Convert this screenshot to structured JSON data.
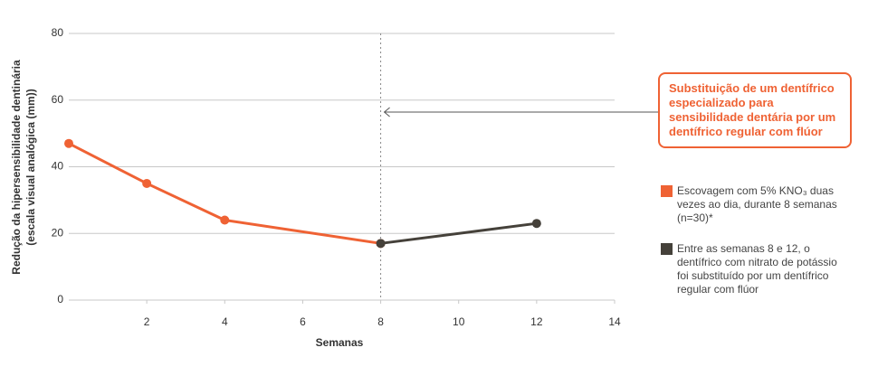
{
  "chart_data": {
    "type": "line",
    "y_label_lines": [
      "Redução da hipersensibilidade dentinária",
      "(escala visual analógica (mm))"
    ],
    "x_label": "Semanas",
    "xlim": [
      0,
      14
    ],
    "xticks": [
      2,
      4,
      6,
      8,
      10,
      12,
      14
    ],
    "ylim": [
      0,
      80
    ],
    "yticks": [
      0,
      20,
      40,
      60,
      80
    ],
    "grid": true,
    "reference_line_x": 8,
    "annotation": "Substituição de um dentífrico especializado para sensibilidade dentária por um dentífrico regular com flúor",
    "series": [
      {
        "name": "Escovagem com 5% KNO₃ duas vezes ao dia, durante 8 semanas (n=30)*",
        "color": "#ef6234",
        "x": [
          0,
          2,
          4,
          8
        ],
        "values": [
          47,
          35,
          24,
          17
        ]
      },
      {
        "name": "Entre as semanas 8 e 12, o dentífrico com nitrato de potássio foi substituído por um dentífrico regular com flúor",
        "color": "#45413a",
        "x": [
          8,
          12
        ],
        "values": [
          17,
          23
        ]
      }
    ]
  }
}
